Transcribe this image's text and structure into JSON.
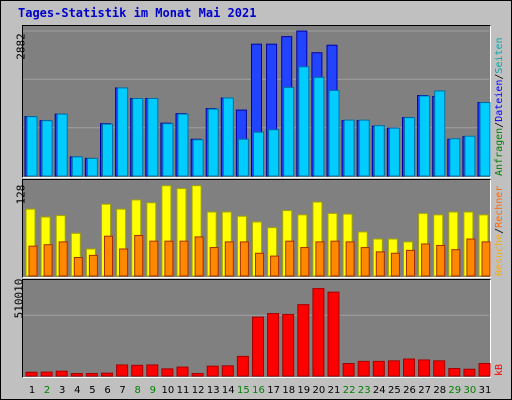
{
  "title": "Tages-Statistik im Monat Mai 2021",
  "colors": {
    "background": "#c0c0c0",
    "panel": "#808080",
    "gridline": "#a0a0a0",
    "title": "#0000cc",
    "anfragen": "#2244ff",
    "dateien": "#00ccff",
    "seiten": "#00aaaa",
    "besuche": "#ffff00",
    "rechner": "#ff8800",
    "kb": "#ff0000",
    "weekday": "#000000",
    "weekend": "#008000"
  },
  "right_legend": {
    "top": [
      {
        "text": "Anfragen",
        "color": "#008000"
      },
      {
        "text": "/",
        "color": "#000000"
      },
      {
        "text": "Dateien",
        "color": "#0000ff"
      },
      {
        "text": "/",
        "color": "#000000"
      },
      {
        "text": "Seiten",
        "color": "#00aaaa"
      }
    ],
    "middle": [
      {
        "text": "Besuche",
        "color": "#ffaa00"
      },
      {
        "text": "/",
        "color": "#000000"
      },
      {
        "text": "Rechner",
        "color": "#ff6600"
      }
    ],
    "bottom": [
      {
        "text": "kB",
        "color": "#ff0000"
      }
    ]
  },
  "chart_data": [
    {
      "type": "bar",
      "ylabel": "2882",
      "ylim": [
        0,
        2882
      ],
      "grid": true,
      "categories": [
        "1",
        "2",
        "3",
        "4",
        "5",
        "6",
        "7",
        "8",
        "9",
        "10",
        "11",
        "12",
        "13",
        "14",
        "15",
        "16",
        "17",
        "18",
        "19",
        "20",
        "21",
        "22",
        "23",
        "24",
        "25",
        "26",
        "27",
        "28",
        "29",
        "30",
        "31"
      ],
      "series": [
        {
          "name": "Anfragen",
          "values": [
            1180,
            1100,
            1230,
            380,
            350,
            1040,
            1750,
            1540,
            1540,
            1050,
            1240,
            730,
            1340,
            1550,
            1310,
            2620,
            2620,
            2770,
            2880,
            2450,
            2600,
            1100,
            1100,
            990,
            950,
            1160,
            1600,
            1580,
            730,
            780,
            1460
          ]
        },
        {
          "name": "Dateien",
          "values": [
            1180,
            1100,
            1230,
            380,
            350,
            1030,
            1750,
            1540,
            1540,
            1040,
            1230,
            720,
            1330,
            1550,
            730,
            870,
            920,
            1760,
            2170,
            1960,
            1700,
            1110,
            1110,
            1000,
            950,
            1160,
            1590,
            1690,
            740,
            790,
            1460
          ]
        }
      ]
    },
    {
      "type": "bar",
      "ylabel": "128",
      "ylim": [
        0,
        128
      ],
      "grid": false,
      "categories": [
        "1",
        "2",
        "3",
        "4",
        "5",
        "6",
        "7",
        "8",
        "9",
        "10",
        "11",
        "12",
        "13",
        "14",
        "15",
        "16",
        "17",
        "18",
        "19",
        "20",
        "21",
        "22",
        "23",
        "24",
        "25",
        "26",
        "27",
        "28",
        "29",
        "30",
        "31"
      ],
      "series": [
        {
          "name": "Besuche",
          "values": [
            94,
            83,
            85,
            60,
            38,
            101,
            94,
            107,
            103,
            127,
            123,
            127,
            90,
            90,
            84,
            76,
            68,
            92,
            86,
            104,
            88,
            87,
            62,
            52,
            52,
            48,
            88,
            86,
            90,
            90,
            86
          ]
        },
        {
          "name": "Rechner",
          "values": [
            42,
            44,
            48,
            26,
            29,
            56,
            38,
            57,
            49,
            49,
            49,
            55,
            40,
            48,
            48,
            32,
            28,
            49,
            40,
            48,
            49,
            48,
            40,
            34,
            32,
            36,
            45,
            43,
            37,
            52,
            48
          ]
        }
      ]
    },
    {
      "type": "bar",
      "ylabel": "510010",
      "ylim": [
        0,
        510010
      ],
      "grid": true,
      "categories": [
        "1",
        "2",
        "3",
        "4",
        "5",
        "6",
        "7",
        "8",
        "9",
        "10",
        "11",
        "12",
        "13",
        "14",
        "15",
        "16",
        "17",
        "18",
        "19",
        "20",
        "21",
        "22",
        "23",
        "24",
        "25",
        "26",
        "27",
        "28",
        "29",
        "30",
        "31"
      ],
      "series": [
        {
          "name": "kB",
          "values": [
            21000,
            22000,
            27000,
            14000,
            14000,
            16000,
            62000,
            60000,
            62000,
            40000,
            50000,
            14000,
            55000,
            57000,
            110000,
            330000,
            350000,
            345000,
            400000,
            490000,
            470000,
            70000,
            82000,
            82000,
            85000,
            95000,
            90000,
            85000,
            42000,
            38000,
            70000
          ]
        }
      ]
    }
  ],
  "weekend_days": [
    2,
    8,
    9,
    15,
    16,
    22,
    23,
    29,
    30
  ]
}
